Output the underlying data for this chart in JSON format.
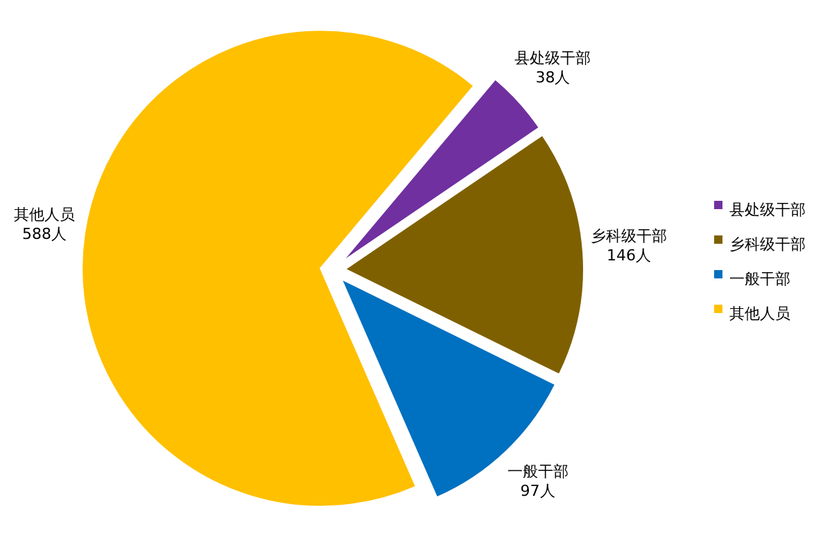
{
  "chart_data": {
    "type": "pie",
    "categories": [
      "县处级干部",
      "乡科级干部",
      "一般干部",
      "其他人员"
    ],
    "values": [
      38,
      146,
      97,
      588
    ],
    "colors": [
      "#7030a0",
      "#7f6000",
      "#0070c0",
      "#ffc000"
    ],
    "value_labels": [
      "38人",
      "146人",
      "97人",
      "588人"
    ],
    "legend": "right"
  }
}
